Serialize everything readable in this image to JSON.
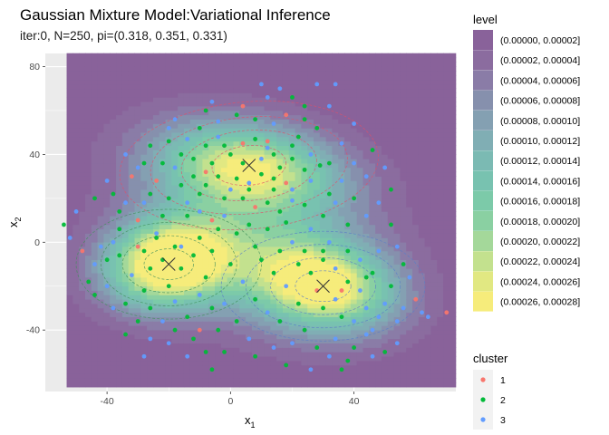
{
  "chart_data": {
    "type": "scatter",
    "title": "Gaussian Mixture Model:Variational Inference",
    "subtitle": "iter:0, N=250, pi=(0.318, 0.351, 0.331)",
    "xlabel": "x",
    "xlabel_sub": "1",
    "ylabel": "x",
    "ylabel_sub": "2",
    "xlim": [
      -60,
      73
    ],
    "ylim": [
      -68,
      86
    ],
    "panel_extent": {
      "x": [
        -53,
        73
      ],
      "y": [
        -66,
        85
      ]
    },
    "xticks": [
      -40,
      0,
      40
    ],
    "yticks": [
      -40,
      0,
      40,
      80
    ],
    "grid": true,
    "level_legend": {
      "title": "level",
      "entries": [
        {
          "label": "(0.00000, 0.00002]",
          "color": "#89629a"
        },
        {
          "label": "(0.00002, 0.00004]",
          "color": "#8b6c9f"
        },
        {
          "label": "(0.00004, 0.00006]",
          "color": "#8a7ca7"
        },
        {
          "label": "(0.00006, 0.00008]",
          "color": "#8690ad"
        },
        {
          "label": "(0.00008, 0.00010]",
          "color": "#84a0b2"
        },
        {
          "label": "(0.00010, 0.00012]",
          "color": "#80aeb4"
        },
        {
          "label": "(0.00012, 0.00014]",
          "color": "#7bbab3"
        },
        {
          "label": "(0.00014, 0.00016]",
          "color": "#78c2b0"
        },
        {
          "label": "(0.00016, 0.00018]",
          "color": "#7ccaa9"
        },
        {
          "label": "(0.00018, 0.00020]",
          "color": "#8ad0a2"
        },
        {
          "label": "(0.00020, 0.00022]",
          "color": "#a4d89a"
        },
        {
          "label": "(0.00022, 0.00024]",
          "color": "#c3e18e"
        },
        {
          "label": "(0.00024, 0.00026]",
          "color": "#e1e882"
        },
        {
          "label": "(0.00026, 0.00028]",
          "color": "#f6ec7b"
        }
      ]
    },
    "cluster_legend": {
      "title": "cluster",
      "entries": [
        {
          "label": "1",
          "color": "#f8766d"
        },
        {
          "label": "2",
          "color": "#00ba38"
        },
        {
          "label": "3",
          "color": "#619cff"
        }
      ]
    },
    "centers": [
      {
        "x": 6,
        "y": 35
      },
      {
        "x": -20,
        "y": -10
      },
      {
        "x": 30,
        "y": -20
      }
    ],
    "points": [
      [
        -2,
        44,
        2
      ],
      [
        0,
        40,
        2
      ],
      [
        4,
        45,
        1
      ],
      [
        8,
        47,
        2
      ],
      [
        12,
        43,
        3
      ],
      [
        14,
        40,
        2
      ],
      [
        20,
        44,
        2
      ],
      [
        22,
        48,
        2
      ],
      [
        -6,
        36,
        2
      ],
      [
        -8,
        32,
        1
      ],
      [
        -12,
        30,
        2
      ],
      [
        -4,
        30,
        2
      ],
      [
        2,
        29,
        2
      ],
      [
        6,
        27,
        3
      ],
      [
        10,
        31,
        2
      ],
      [
        14,
        29,
        2
      ],
      [
        18,
        27,
        1
      ],
      [
        24,
        33,
        2
      ],
      [
        26,
        28,
        3
      ],
      [
        29,
        35,
        2
      ],
      [
        -16,
        40,
        2
      ],
      [
        -18,
        34,
        3
      ],
      [
        -22,
        36,
        2
      ],
      [
        -24,
        28,
        1
      ],
      [
        -26,
        22,
        2
      ],
      [
        -20,
        20,
        2
      ],
      [
        -14,
        18,
        3
      ],
      [
        -10,
        22,
        2
      ],
      [
        -2,
        20,
        2
      ],
      [
        4,
        20,
        2
      ],
      [
        8,
        16,
        1
      ],
      [
        12,
        18,
        2
      ],
      [
        16,
        14,
        2
      ],
      [
        20,
        19,
        3
      ],
      [
        24,
        17,
        2
      ],
      [
        32,
        22,
        2
      ],
      [
        34,
        18,
        3
      ],
      [
        -28,
        18,
        3
      ],
      [
        -30,
        10,
        1
      ],
      [
        -10,
        52,
        2
      ],
      [
        -4,
        55,
        3
      ],
      [
        2,
        58,
        2
      ],
      [
        8,
        56,
        2
      ],
      [
        14,
        54,
        3
      ],
      [
        18,
        58,
        1
      ],
      [
        24,
        56,
        2
      ],
      [
        28,
        52,
        2
      ],
      [
        -14,
        47,
        3
      ],
      [
        -20,
        46,
        2
      ],
      [
        36,
        45,
        3
      ],
      [
        40,
        36,
        3
      ],
      [
        44,
        30,
        3
      ],
      [
        -32,
        30,
        1
      ],
      [
        -34,
        40,
        3
      ],
      [
        16,
        70,
        3
      ],
      [
        12,
        66,
        3
      ],
      [
        28,
        72,
        3
      ],
      [
        34,
        72,
        3
      ],
      [
        24,
        62,
        2
      ],
      [
        4,
        62,
        1
      ],
      [
        -8,
        60,
        2
      ],
      [
        -2,
        12,
        3
      ],
      [
        6,
        8,
        2
      ],
      [
        12,
        6,
        2
      ],
      [
        18,
        9,
        2
      ],
      [
        -6,
        10,
        1
      ],
      [
        -14,
        12,
        2
      ],
      [
        -24,
        4,
        3
      ],
      [
        -18,
        -2,
        2
      ],
      [
        -22,
        -8,
        2
      ],
      [
        -26,
        -12,
        2
      ],
      [
        -16,
        -12,
        2
      ],
      [
        -12,
        -6,
        2
      ],
      [
        -8,
        -16,
        2
      ],
      [
        -20,
        -20,
        2
      ],
      [
        -28,
        -22,
        2
      ],
      [
        -32,
        -15,
        3
      ],
      [
        -36,
        -6,
        2
      ],
      [
        -38,
        0,
        3
      ],
      [
        -40,
        -8,
        2
      ],
      [
        -34,
        -28,
        2
      ],
      [
        -26,
        -30,
        2
      ],
      [
        -18,
        -27,
        3
      ],
      [
        -10,
        -24,
        3
      ],
      [
        -6,
        -30,
        2
      ],
      [
        -14,
        -34,
        2
      ],
      [
        -22,
        -36,
        3
      ],
      [
        -30,
        -36,
        2
      ],
      [
        -4,
        -40,
        2
      ],
      [
        -12,
        -44,
        2
      ],
      [
        -20,
        -46,
        3
      ],
      [
        -2,
        -50,
        2
      ],
      [
        -30,
        -2,
        1
      ],
      [
        -36,
        6,
        2
      ],
      [
        -42,
        -2,
        3
      ],
      [
        -44,
        -10,
        3
      ],
      [
        -46,
        -18,
        2
      ],
      [
        -40,
        -20,
        3
      ],
      [
        -28,
        -4,
        2
      ],
      [
        -24,
        2,
        2
      ],
      [
        -16,
        -2,
        3
      ],
      [
        -10,
        2,
        2
      ],
      [
        -6,
        -4,
        2
      ],
      [
        0,
        -10,
        2
      ],
      [
        4,
        -18,
        3
      ],
      [
        8,
        -26,
        2
      ],
      [
        12,
        -32,
        3
      ],
      [
        16,
        -36,
        2
      ],
      [
        22,
        -10,
        2
      ],
      [
        26,
        -14,
        2
      ],
      [
        30,
        -8,
        2
      ],
      [
        34,
        -12,
        3
      ],
      [
        38,
        -18,
        2
      ],
      [
        42,
        -22,
        3
      ],
      [
        30,
        -30,
        2
      ],
      [
        28,
        -22,
        1
      ],
      [
        34,
        -26,
        3
      ],
      [
        36,
        -34,
        2
      ],
      [
        40,
        -36,
        3
      ],
      [
        44,
        -30,
        3
      ],
      [
        46,
        -40,
        3
      ],
      [
        24,
        -40,
        2
      ],
      [
        20,
        -46,
        3
      ],
      [
        28,
        -48,
        2
      ],
      [
        34,
        -44,
        3
      ],
      [
        40,
        -48,
        2
      ],
      [
        44,
        -42,
        3
      ],
      [
        48,
        -34,
        3
      ],
      [
        50,
        -28,
        3
      ],
      [
        52,
        -20,
        2
      ],
      [
        54,
        -36,
        3
      ],
      [
        38,
        -54,
        2
      ],
      [
        32,
        -52,
        3
      ],
      [
        36,
        -58,
        2
      ],
      [
        22,
        -28,
        2
      ],
      [
        18,
        -20,
        3
      ],
      [
        14,
        -14,
        2
      ],
      [
        10,
        -8,
        2
      ],
      [
        16,
        -4,
        2
      ],
      [
        20,
        0,
        3
      ],
      [
        24,
        -4,
        2
      ],
      [
        32,
        0,
        3
      ],
      [
        38,
        -4,
        2
      ],
      [
        42,
        -8,
        3
      ],
      [
        46,
        -14,
        2
      ],
      [
        48,
        -4,
        3
      ],
      [
        36,
        -22,
        1
      ],
      [
        -2,
        -28,
        3
      ],
      [
        2,
        -36,
        2
      ],
      [
        6,
        -44,
        3
      ],
      [
        -8,
        -50,
        2
      ],
      [
        -14,
        -52,
        3
      ],
      [
        -26,
        -44,
        3
      ],
      [
        -34,
        -42,
        2
      ],
      [
        -38,
        -30,
        3
      ],
      [
        -44,
        -24,
        2
      ],
      [
        56,
        -30,
        3
      ],
      [
        60,
        -26,
        1
      ],
      [
        62,
        -32,
        3
      ],
      [
        70,
        -32,
        1
      ],
      [
        64,
        -34,
        3
      ],
      [
        54,
        -46,
        3
      ],
      [
        50,
        -50,
        2
      ],
      [
        46,
        -52,
        3
      ],
      [
        -48,
        -4,
        1
      ],
      [
        -52,
        2,
        3
      ],
      [
        -54,
        8,
        2
      ],
      [
        -50,
        14,
        3
      ],
      [
        -44,
        20,
        2
      ],
      [
        -40,
        28,
        3
      ],
      [
        -36,
        14,
        2
      ],
      [
        -30,
        34,
        3
      ],
      [
        -26,
        44,
        2
      ],
      [
        -20,
        52,
        3
      ],
      [
        -12,
        38,
        2
      ],
      [
        -8,
        44,
        2
      ],
      [
        4,
        36,
        2
      ],
      [
        10,
        38,
        3
      ],
      [
        16,
        34,
        2
      ],
      [
        20,
        38,
        2
      ],
      [
        26,
        40,
        3
      ],
      [
        32,
        36,
        2
      ],
      [
        36,
        28,
        3
      ],
      [
        40,
        20,
        2
      ],
      [
        44,
        12,
        3
      ],
      [
        38,
        8,
        2
      ],
      [
        30,
        12,
        2
      ],
      [
        26,
        6,
        3
      ],
      [
        8,
        -2,
        2
      ],
      [
        2,
        4,
        2
      ],
      [
        -4,
        6,
        2
      ],
      [
        -10,
        14,
        3
      ],
      [
        -16,
        26,
        2
      ],
      [
        -8,
        26,
        2
      ],
      [
        0,
        24,
        3
      ],
      [
        6,
        24,
        2
      ],
      [
        14,
        24,
        2
      ],
      [
        20,
        24,
        3
      ],
      [
        -22,
        12,
        2
      ],
      [
        -34,
        18,
        3
      ],
      [
        -38,
        22,
        2
      ],
      [
        -28,
        36,
        2
      ],
      [
        -18,
        56,
        3
      ],
      [
        -6,
        64,
        3
      ],
      [
        10,
        72,
        3
      ],
      [
        20,
        66,
        2
      ],
      [
        32,
        62,
        3
      ],
      [
        40,
        54,
        3
      ],
      [
        46,
        42,
        2
      ],
      [
        50,
        34,
        3
      ],
      [
        52,
        24,
        2
      ],
      [
        48,
        18,
        3
      ],
      [
        52,
        8,
        2
      ],
      [
        54,
        -2,
        3
      ],
      [
        56,
        -10,
        2
      ],
      [
        58,
        -16,
        3
      ],
      [
        -10,
        -40,
        1
      ],
      [
        -18,
        -40,
        2
      ],
      [
        -28,
        -52,
        3
      ],
      [
        -6,
        -58,
        2
      ],
      [
        8,
        -52,
        2
      ],
      [
        14,
        -48,
        3
      ],
      [
        18,
        -56,
        2
      ],
      [
        26,
        -58,
        3
      ],
      [
        30,
        -4,
        2
      ],
      [
        44,
        -16,
        2
      ],
      [
        12,
        46,
        1
      ],
      [
        -4,
        48,
        3
      ]
    ],
    "contours": [
      {
        "cluster": 1,
        "cx": 6,
        "cy": 35,
        "rx": 12,
        "ry": 9,
        "rot": -5
      },
      {
        "cluster": 1,
        "cx": 6,
        "cy": 35,
        "rx": 22,
        "ry": 16,
        "rot": -5
      },
      {
        "cluster": 1,
        "cx": 6,
        "cy": 35,
        "rx": 32,
        "ry": 22,
        "rot": -5
      },
      {
        "cluster": 1,
        "cx": 6,
        "cy": 35,
        "rx": 42,
        "ry": 29,
        "rot": -5
      },
      {
        "cluster": 2,
        "cx": -20,
        "cy": -10,
        "rx": 8,
        "ry": 7,
        "rot": 0
      },
      {
        "cluster": 2,
        "cx": -20,
        "cy": -10,
        "rx": 15,
        "ry": 13,
        "rot": 0
      },
      {
        "cluster": 2,
        "cx": -20,
        "cy": -10,
        "rx": 22,
        "ry": 19,
        "rot": 0
      },
      {
        "cluster": 2,
        "cx": -20,
        "cy": -10,
        "rx": 30,
        "ry": 25,
        "rot": 0
      },
      {
        "cluster": 3,
        "cx": 30,
        "cy": -20,
        "rx": 9,
        "ry": 7,
        "rot": 0
      },
      {
        "cluster": 3,
        "cx": 30,
        "cy": -20,
        "rx": 17,
        "ry": 13,
        "rot": 0
      },
      {
        "cluster": 3,
        "cx": 30,
        "cy": -20,
        "rx": 25,
        "ry": 19,
        "rot": 0
      },
      {
        "cluster": 3,
        "cx": 30,
        "cy": -20,
        "rx": 33,
        "ry": 25,
        "rot": 0
      }
    ]
  }
}
